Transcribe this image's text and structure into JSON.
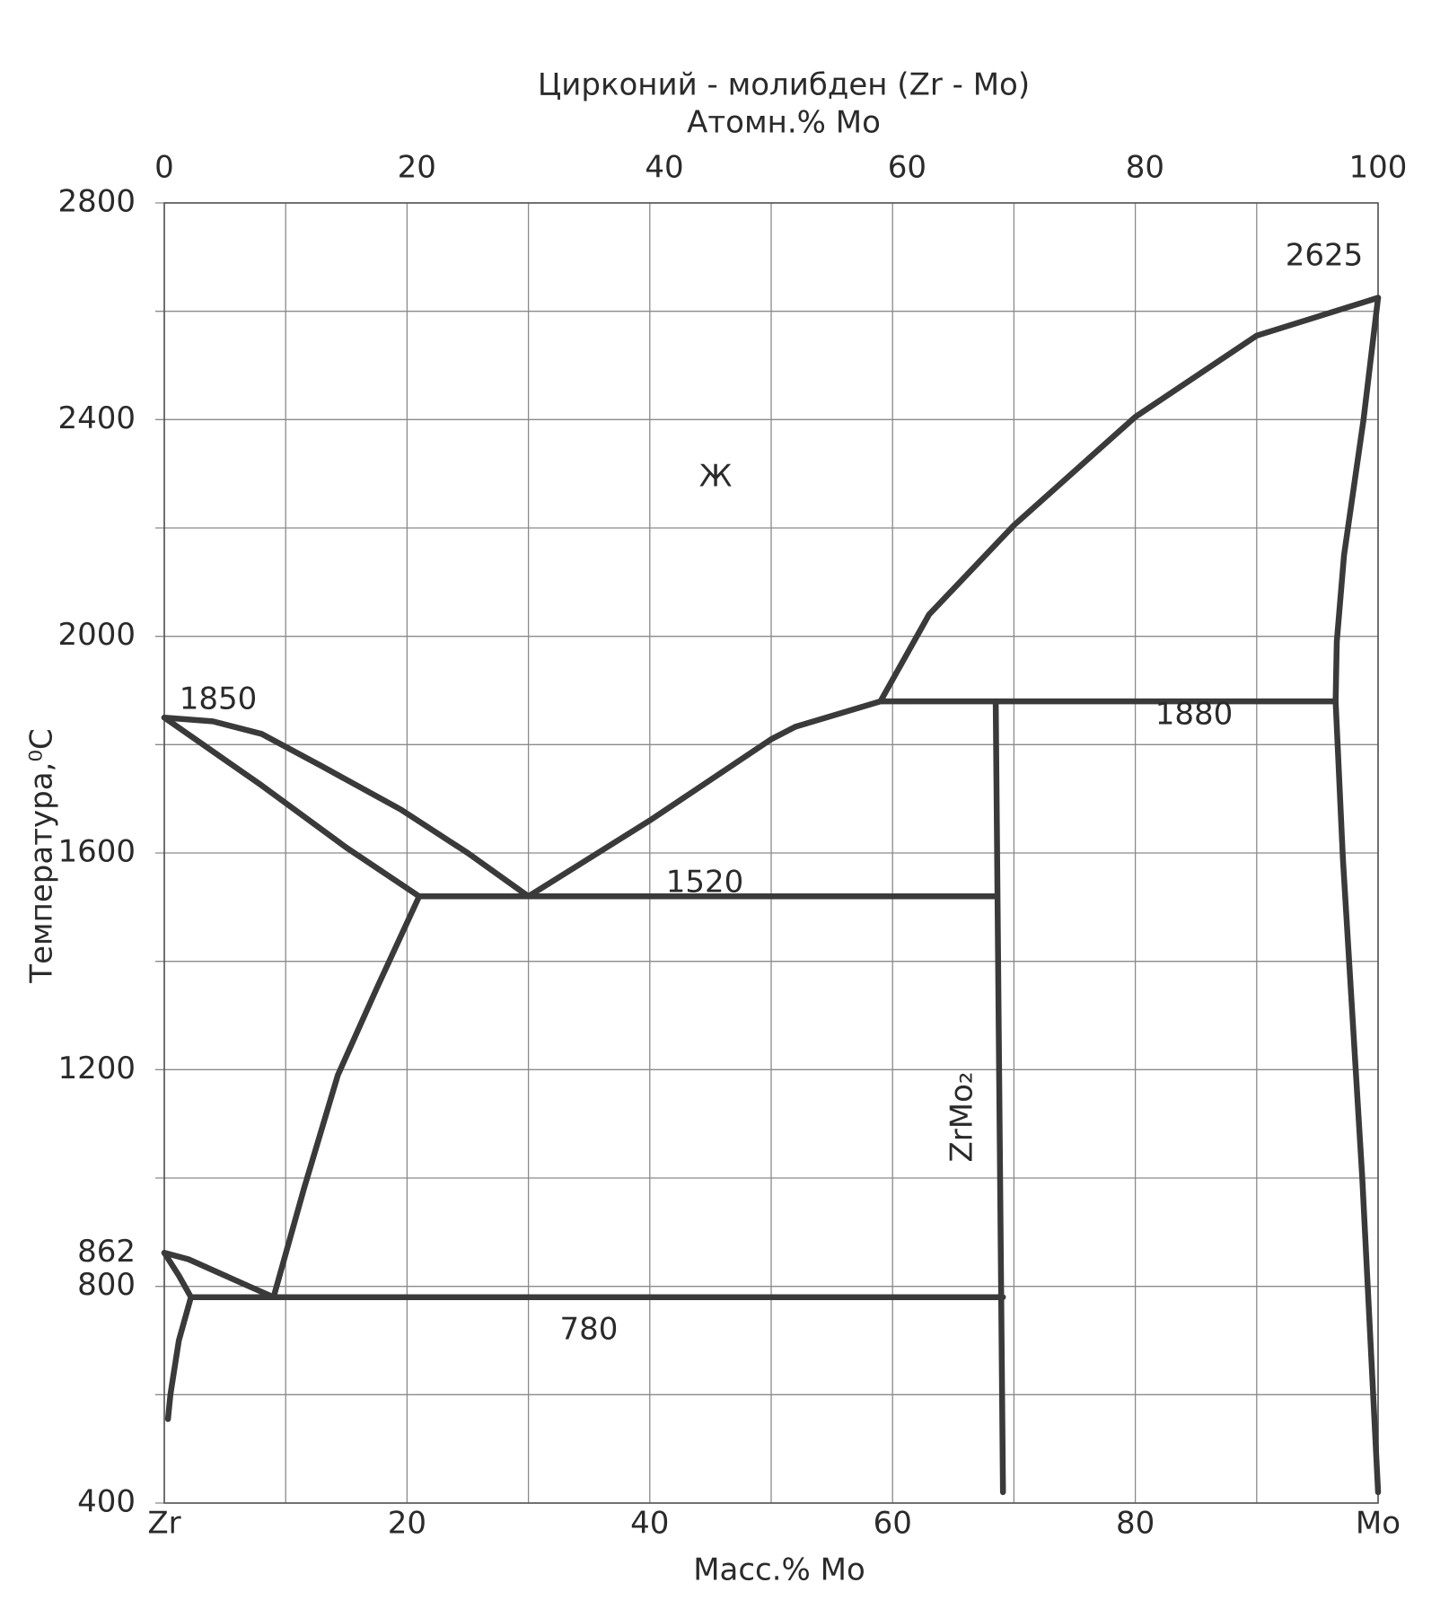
{
  "chart_data": {
    "type": "line",
    "title": "Цирконий - молибден (Zr - Mo)",
    "x2label": "Атомн.% Mo",
    "xlabel": "Масс.% Mo",
    "ylabel": "Температура,⁰C",
    "xlim": [
      0,
      100
    ],
    "ylim": [
      400,
      2800
    ],
    "xticks": [
      {
        "value": 0,
        "label": "Zr"
      },
      20,
      40,
      60,
      80,
      {
        "value": 100,
        "label": "Mo"
      }
    ],
    "x2ticks": [
      0,
      {
        "value": 20.8,
        "label": "20"
      },
      {
        "value": 41.2,
        "label": "40"
      },
      {
        "value": 61.2,
        "label": "60"
      },
      {
        "value": 80.8,
        "label": "80"
      },
      100
    ],
    "yticks": [
      400,
      800,
      862,
      1200,
      1600,
      2000,
      2400,
      2800
    ],
    "grid": true,
    "xgrid": [
      0,
      10,
      20,
      30,
      40,
      50,
      60,
      70,
      80,
      90,
      100
    ],
    "ygrid": [
      400,
      600,
      800,
      1000,
      1200,
      1400,
      1600,
      1800,
      2000,
      2200,
      2400,
      2600,
      2800
    ],
    "series": [
      {
        "color": "#3a3a3a",
        "x": [
          0,
          4,
          8,
          13,
          19.5,
          25,
          30
        ],
        "values": [
          1850,
          1843,
          1820,
          1760,
          1680,
          1600,
          1520
        ]
      },
      {
        "color": "#3a3a3a",
        "x": [
          0,
          8,
          15,
          21
        ],
        "values": [
          1850,
          1725,
          1610,
          1520
        ]
      },
      {
        "color": "#3a3a3a",
        "x": [
          21,
          68.5
        ],
        "values": [
          1520,
          1520
        ]
      },
      {
        "color": "#3a3a3a",
        "x": [
          30,
          40,
          50,
          52,
          59,
          63,
          70,
          80,
          90,
          100
        ],
        "values": [
          1520,
          1660,
          1810,
          1833,
          1880,
          2040,
          2205,
          2405,
          2555,
          2625
        ]
      },
      {
        "color": "#3a3a3a",
        "x": [
          100,
          98.8,
          97.2,
          96.6,
          96.5,
          97.1,
          98.7,
          100
        ],
        "values": [
          2625,
          2400,
          2150,
          1990,
          1880,
          1590,
          1000,
          420
        ]
      },
      {
        "color": "#3a3a3a",
        "x": [
          59,
          96.5
        ],
        "values": [
          1880,
          1880
        ]
      },
      {
        "color": "#3a3a3a",
        "x": [
          68.5,
          69.1
        ],
        "values": [
          1880,
          420
        ]
      },
      {
        "color": "#3a3a3a",
        "x": [
          2.2,
          69.1
        ],
        "values": [
          780,
          780
        ]
      },
      {
        "color": "#3a3a3a",
        "x": [
          21,
          17.5,
          14.3,
          11.5,
          9
        ],
        "values": [
          1520,
          1350,
          1190,
          980,
          780
        ]
      },
      {
        "color": "#3a3a3a",
        "x": [
          0,
          2,
          4.5,
          7,
          9
        ],
        "values": [
          862,
          850,
          825,
          800,
          780
        ]
      },
      {
        "color": "#3a3a3a",
        "x": [
          0,
          1.2,
          2.2
        ],
        "values": [
          862,
          820,
          780
        ]
      },
      {
        "color": "#3a3a3a",
        "x": [
          2.2,
          1.2,
          0.5,
          0.3
        ],
        "values": [
          780,
          700,
          600,
          555
        ]
      }
    ],
    "annotations": [
      "1850",
      "2625",
      "1880",
      "1520",
      "780",
      "Ж",
      "ZrMo₂"
    ]
  }
}
